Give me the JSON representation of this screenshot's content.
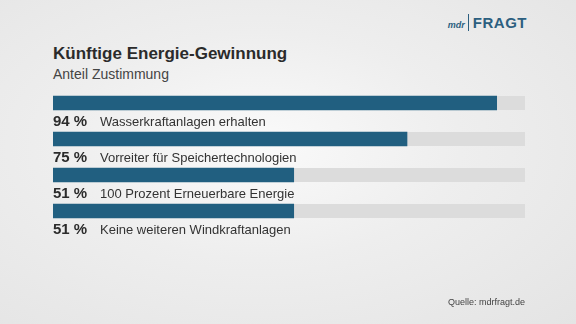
{
  "chart_data": {
    "type": "bar",
    "orientation": "horizontal",
    "title": "Künftige Energie-Gewinnung",
    "subtitle": "Anteil Zustimmung",
    "categories": [
      "Wasserkraftanlagen erhalten",
      "Vorreiter für Speichertechnologien",
      "100 Prozent Erneuerbare Energie",
      "Keine weiteren Windkraftanlagen"
    ],
    "values": [
      94,
      75,
      51,
      51
    ],
    "value_labels": [
      "94 %",
      "75 %",
      "51 %",
      "51 %"
    ],
    "color": "#215f80",
    "xlim": [
      0,
      100
    ],
    "grid": false,
    "tick_labels": false,
    "data_labels": true,
    "source": "Quelle: mdrfragt.de",
    "logo": [
      "mdr",
      "FRAGT"
    ]
  }
}
